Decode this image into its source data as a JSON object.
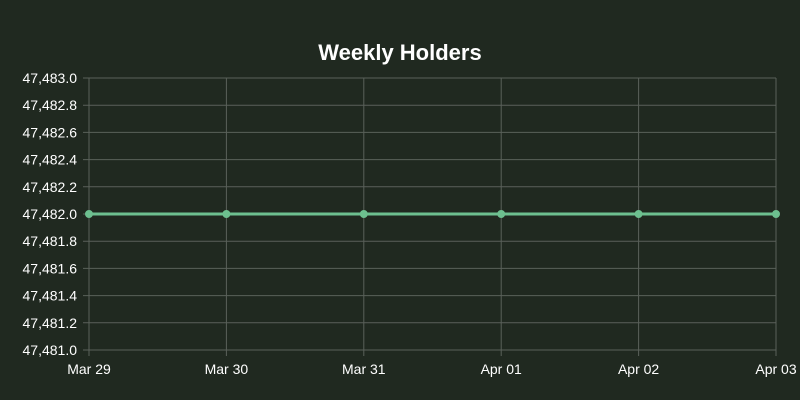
{
  "chart_data": {
    "type": "line",
    "title": "Weekly Holders",
    "xlabel": "",
    "ylabel": "",
    "categories": [
      "Mar 29",
      "Mar 30",
      "Mar 31",
      "Apr 01",
      "Apr 02",
      "Apr 03"
    ],
    "series": [
      {
        "values": [
          47482.0,
          47482.0,
          47482.0,
          47482.0,
          47482.0,
          47482.0
        ]
      }
    ],
    "ylim": [
      47481.0,
      47483.0
    ],
    "y_ticks": [
      47481.0,
      47481.2,
      47481.4,
      47481.6,
      47481.8,
      47482.0,
      47482.2,
      47482.4,
      47482.6,
      47482.8,
      47483.0
    ],
    "y_tick_labels": [
      "47,481.0",
      "47,481.2",
      "47,481.4",
      "47,481.6",
      "47,481.8",
      "47,482.0",
      "47,482.2",
      "47,482.4",
      "47,482.6",
      "47,482.8",
      "47,483.0"
    ],
    "grid": true,
    "legend": "none"
  },
  "colors": {
    "background": "#202920",
    "line": "#6dbf8f",
    "grid": "#5a615a",
    "text": "#ffffff"
  }
}
